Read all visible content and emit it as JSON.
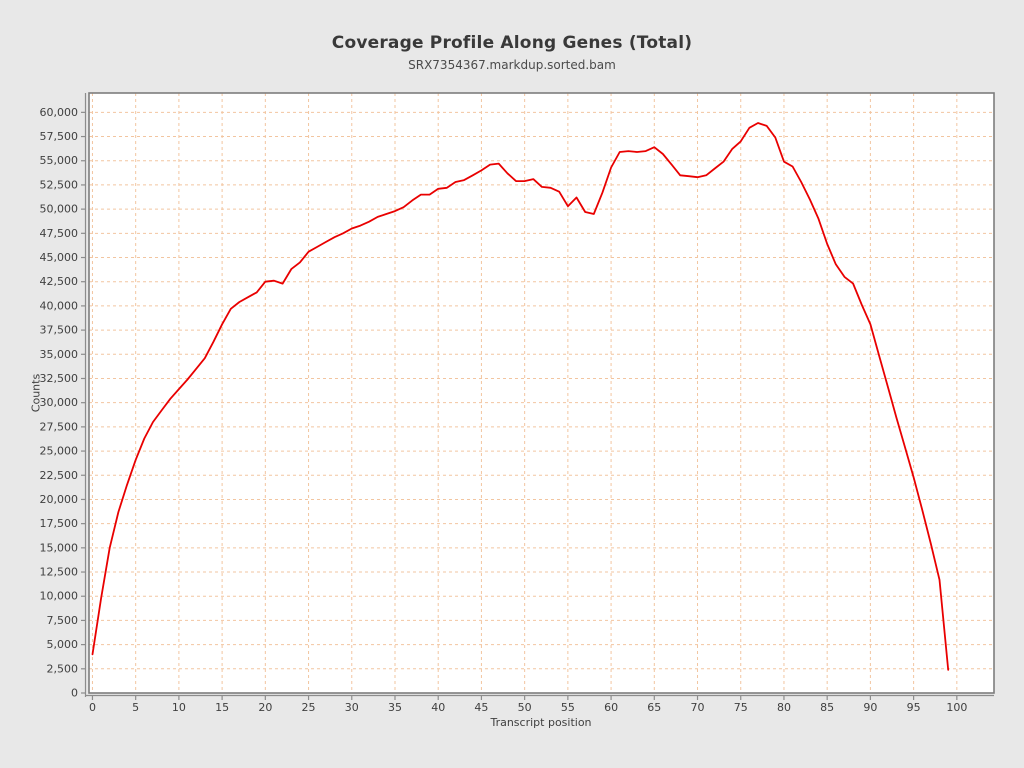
{
  "colors": {
    "page_background": "#e8e8e8",
    "plot_background": "#ffffff",
    "grid": "#f2c5a0",
    "frame": "#7d7d7d",
    "axis": "#8c8c8c",
    "series_red": "#e90000",
    "text": "#3f3f3f"
  },
  "chart_data": {
    "type": "line",
    "title": "Coverage Profile Along Genes (Total)",
    "subtitle": "SRX7354367.markdup.sorted.bam",
    "xlabel": "Transcript position",
    "ylabel": "Counts",
    "xlim": [
      -0.4,
      104.3
    ],
    "ylim": [
      0,
      62000
    ],
    "x_ticks": [
      0,
      5,
      10,
      15,
      20,
      25,
      30,
      35,
      40,
      45,
      50,
      55,
      60,
      65,
      70,
      75,
      80,
      85,
      90,
      95,
      100
    ],
    "y_ticks": [
      0,
      2500,
      5000,
      7500,
      10000,
      12500,
      15000,
      17500,
      20000,
      22500,
      25000,
      27500,
      30000,
      32500,
      35000,
      37500,
      40000,
      42500,
      45000,
      47500,
      50000,
      52500,
      55000,
      57500,
      60000
    ],
    "grid_style": "dashed",
    "legend": "none",
    "x_start": 0,
    "x_step": 1,
    "series": [
      {
        "name": "SRX7354367.markdup.sorted.bam",
        "color": "#e90000",
        "values": [
          4000,
          9800,
          15000,
          18700,
          21500,
          24100,
          26300,
          28000,
          29200,
          30400,
          31400,
          32400,
          33500,
          34600,
          36300,
          38100,
          39700,
          40400,
          40900,
          41400,
          42500,
          42600,
          42300,
          43800,
          44500,
          45600,
          46100,
          46600,
          47100,
          47500,
          48000,
          48300,
          48700,
          49200,
          49500,
          49800,
          50200,
          50900,
          51500,
          51500,
          52100,
          52200,
          52800,
          53000,
          53500,
          54000,
          54600,
          54700,
          53700,
          52900,
          52900,
          53100,
          52300,
          52200,
          51800,
          50300,
          51200,
          49700,
          49500,
          51700,
          54300,
          55900,
          56000,
          55900,
          56000,
          56400,
          55700,
          54600,
          53500,
          53400,
          53300,
          53500,
          54200,
          54900,
          56200,
          57000,
          58400,
          58900,
          58600,
          57400,
          54900,
          54400,
          52800,
          51000,
          49000,
          46400,
          44300,
          43000,
          42300,
          40100,
          38100,
          34900,
          31700,
          28500,
          25400,
          22300,
          18900,
          15400,
          11700,
          2400
        ]
      }
    ]
  }
}
